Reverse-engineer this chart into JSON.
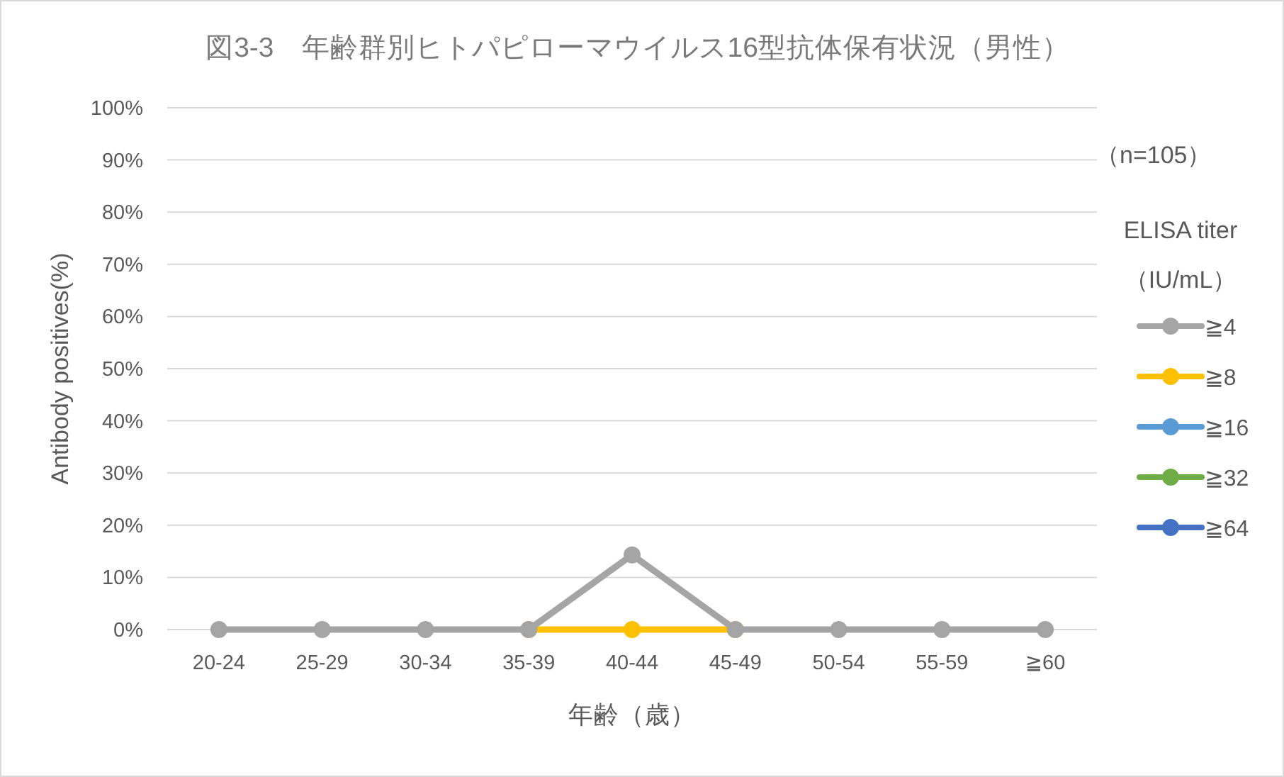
{
  "chart_data": {
    "type": "line",
    "title": "図3-3　年齢群別ヒトパピローマウイルス16型抗体保有状況（男性）",
    "xlabel": "年齢（歳）",
    "ylabel": "Antibody positives(%)",
    "legend_title": "ELISA titer\n（IU/mL）",
    "annotations": [
      "（n=105）"
    ],
    "categories": [
      "20-24",
      "25-29",
      "30-34",
      "35-39",
      "40-44",
      "45-49",
      "50-54",
      "55-59",
      "≧60"
    ],
    "series": [
      {
        "name": "≧4",
        "color": "#a5a5a5",
        "values": [
          0,
          0,
          0,
          0,
          14.3,
          0,
          0,
          0,
          0
        ]
      },
      {
        "name": "≧8",
        "color": "#ffc000",
        "values": [
          null,
          null,
          null,
          0,
          0,
          0,
          null,
          null,
          null
        ]
      },
      {
        "name": "≧16",
        "color": "#5b9bd5",
        "values": [
          null,
          null,
          null,
          null,
          null,
          null,
          null,
          null,
          null
        ]
      },
      {
        "name": "≧32",
        "color": "#70ad47",
        "values": [
          null,
          null,
          null,
          null,
          null,
          null,
          null,
          null,
          null
        ]
      },
      {
        "name": "≧64",
        "color": "#4472c4",
        "values": [
          null,
          null,
          null,
          null,
          null,
          null,
          null,
          null,
          null
        ]
      }
    ],
    "ylim": [
      0,
      100
    ],
    "yticks": [
      {
        "value": 0,
        "label": "0%"
      },
      {
        "value": 10,
        "label": "10%"
      },
      {
        "value": 20,
        "label": "20%"
      },
      {
        "value": 30,
        "label": "30%"
      },
      {
        "value": 40,
        "label": "40%"
      },
      {
        "value": 50,
        "label": "50%"
      },
      {
        "value": 60,
        "label": "60%"
      },
      {
        "value": 70,
        "label": "70%"
      },
      {
        "value": 80,
        "label": "80%"
      },
      {
        "value": 90,
        "label": "90%"
      },
      {
        "value": 100,
        "label": "100%"
      }
    ],
    "grid": "y",
    "legend": "right",
    "marker": "circle"
  }
}
